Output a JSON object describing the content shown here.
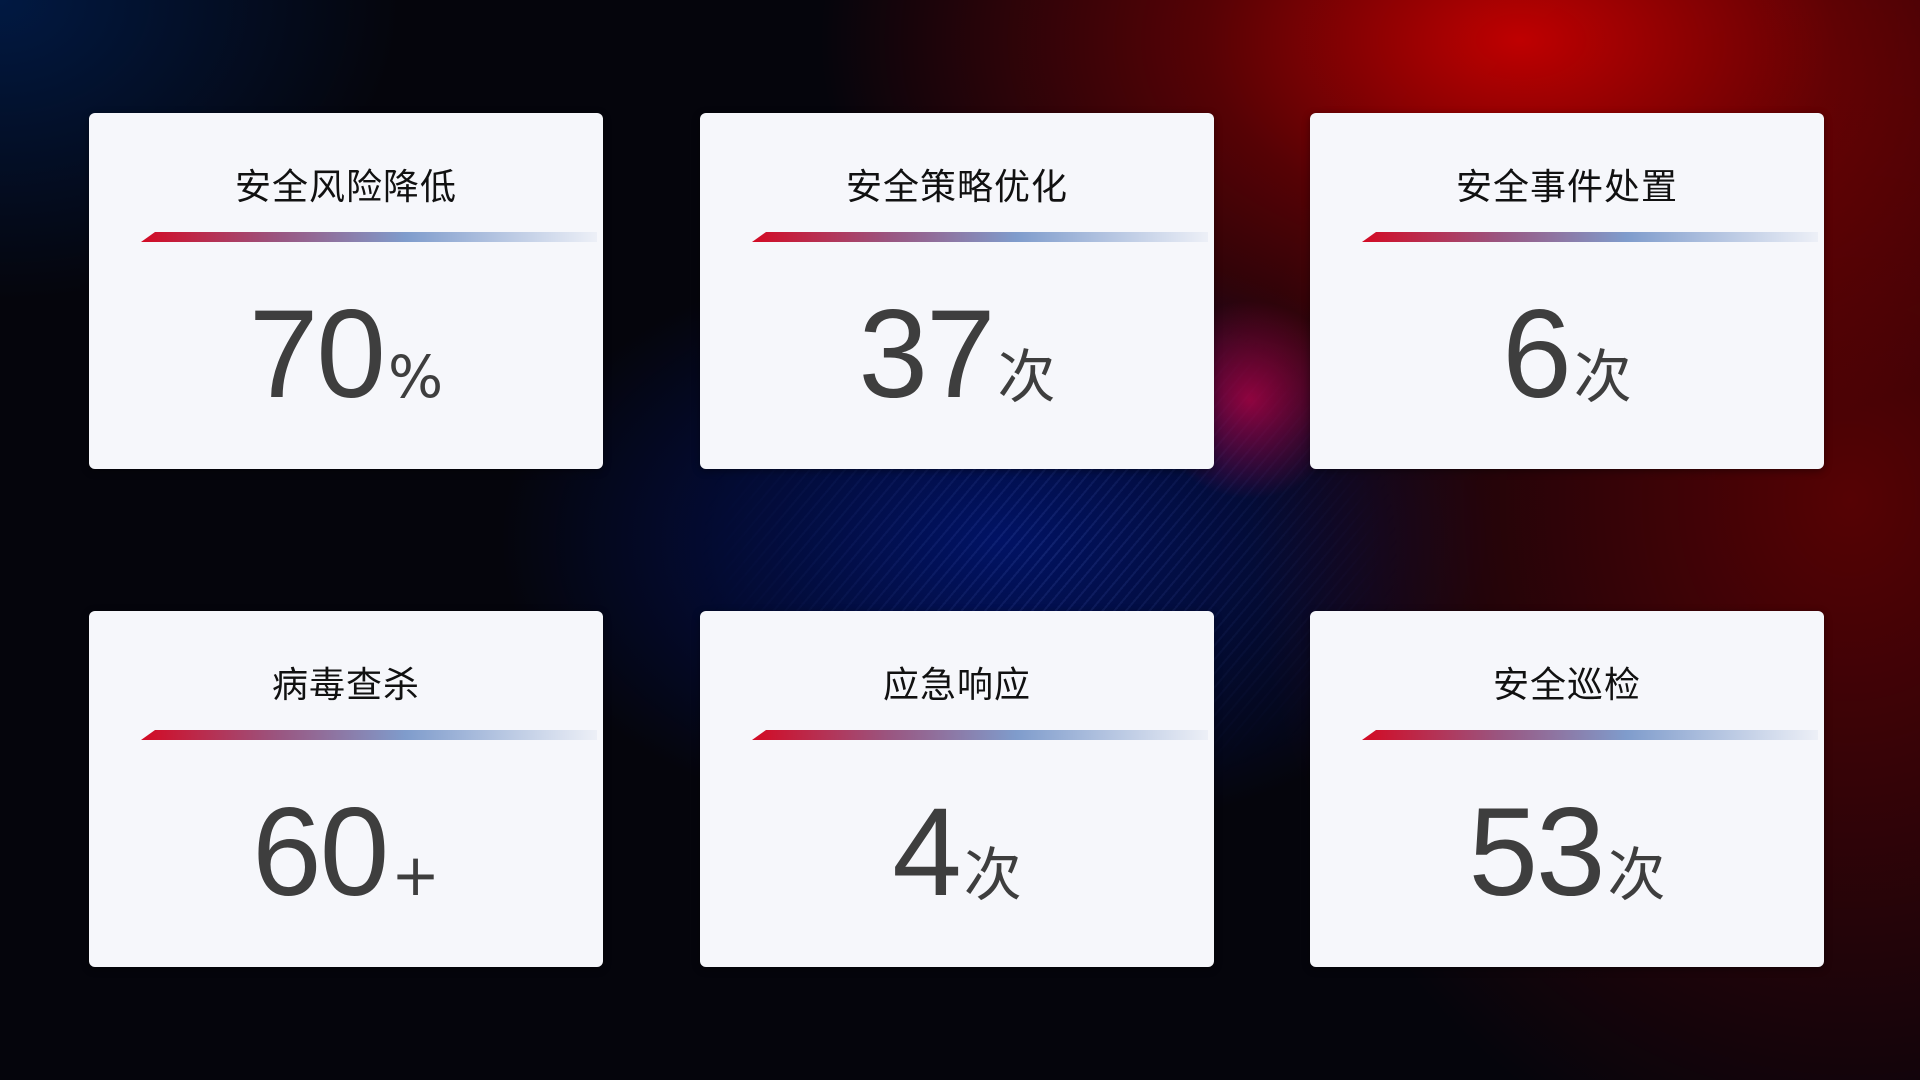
{
  "cards": [
    {
      "title": "安全风险降低",
      "value": "70",
      "unit": "%"
    },
    {
      "title": "安全策略优化",
      "value": "37",
      "unit": "次"
    },
    {
      "title": "安全事件处置",
      "value": "6",
      "unit": "次"
    },
    {
      "title": "病毒查杀",
      "value": "60",
      "unit": "+"
    },
    {
      "title": "应急响应",
      "value": "4",
      "unit": "次"
    },
    {
      "title": "安全巡检",
      "value": "53",
      "unit": "次"
    }
  ],
  "colors": {
    "accent_red": "#d30a24",
    "accent_blue": "#7f9ccc",
    "card_bg": "#f6f7fb"
  }
}
